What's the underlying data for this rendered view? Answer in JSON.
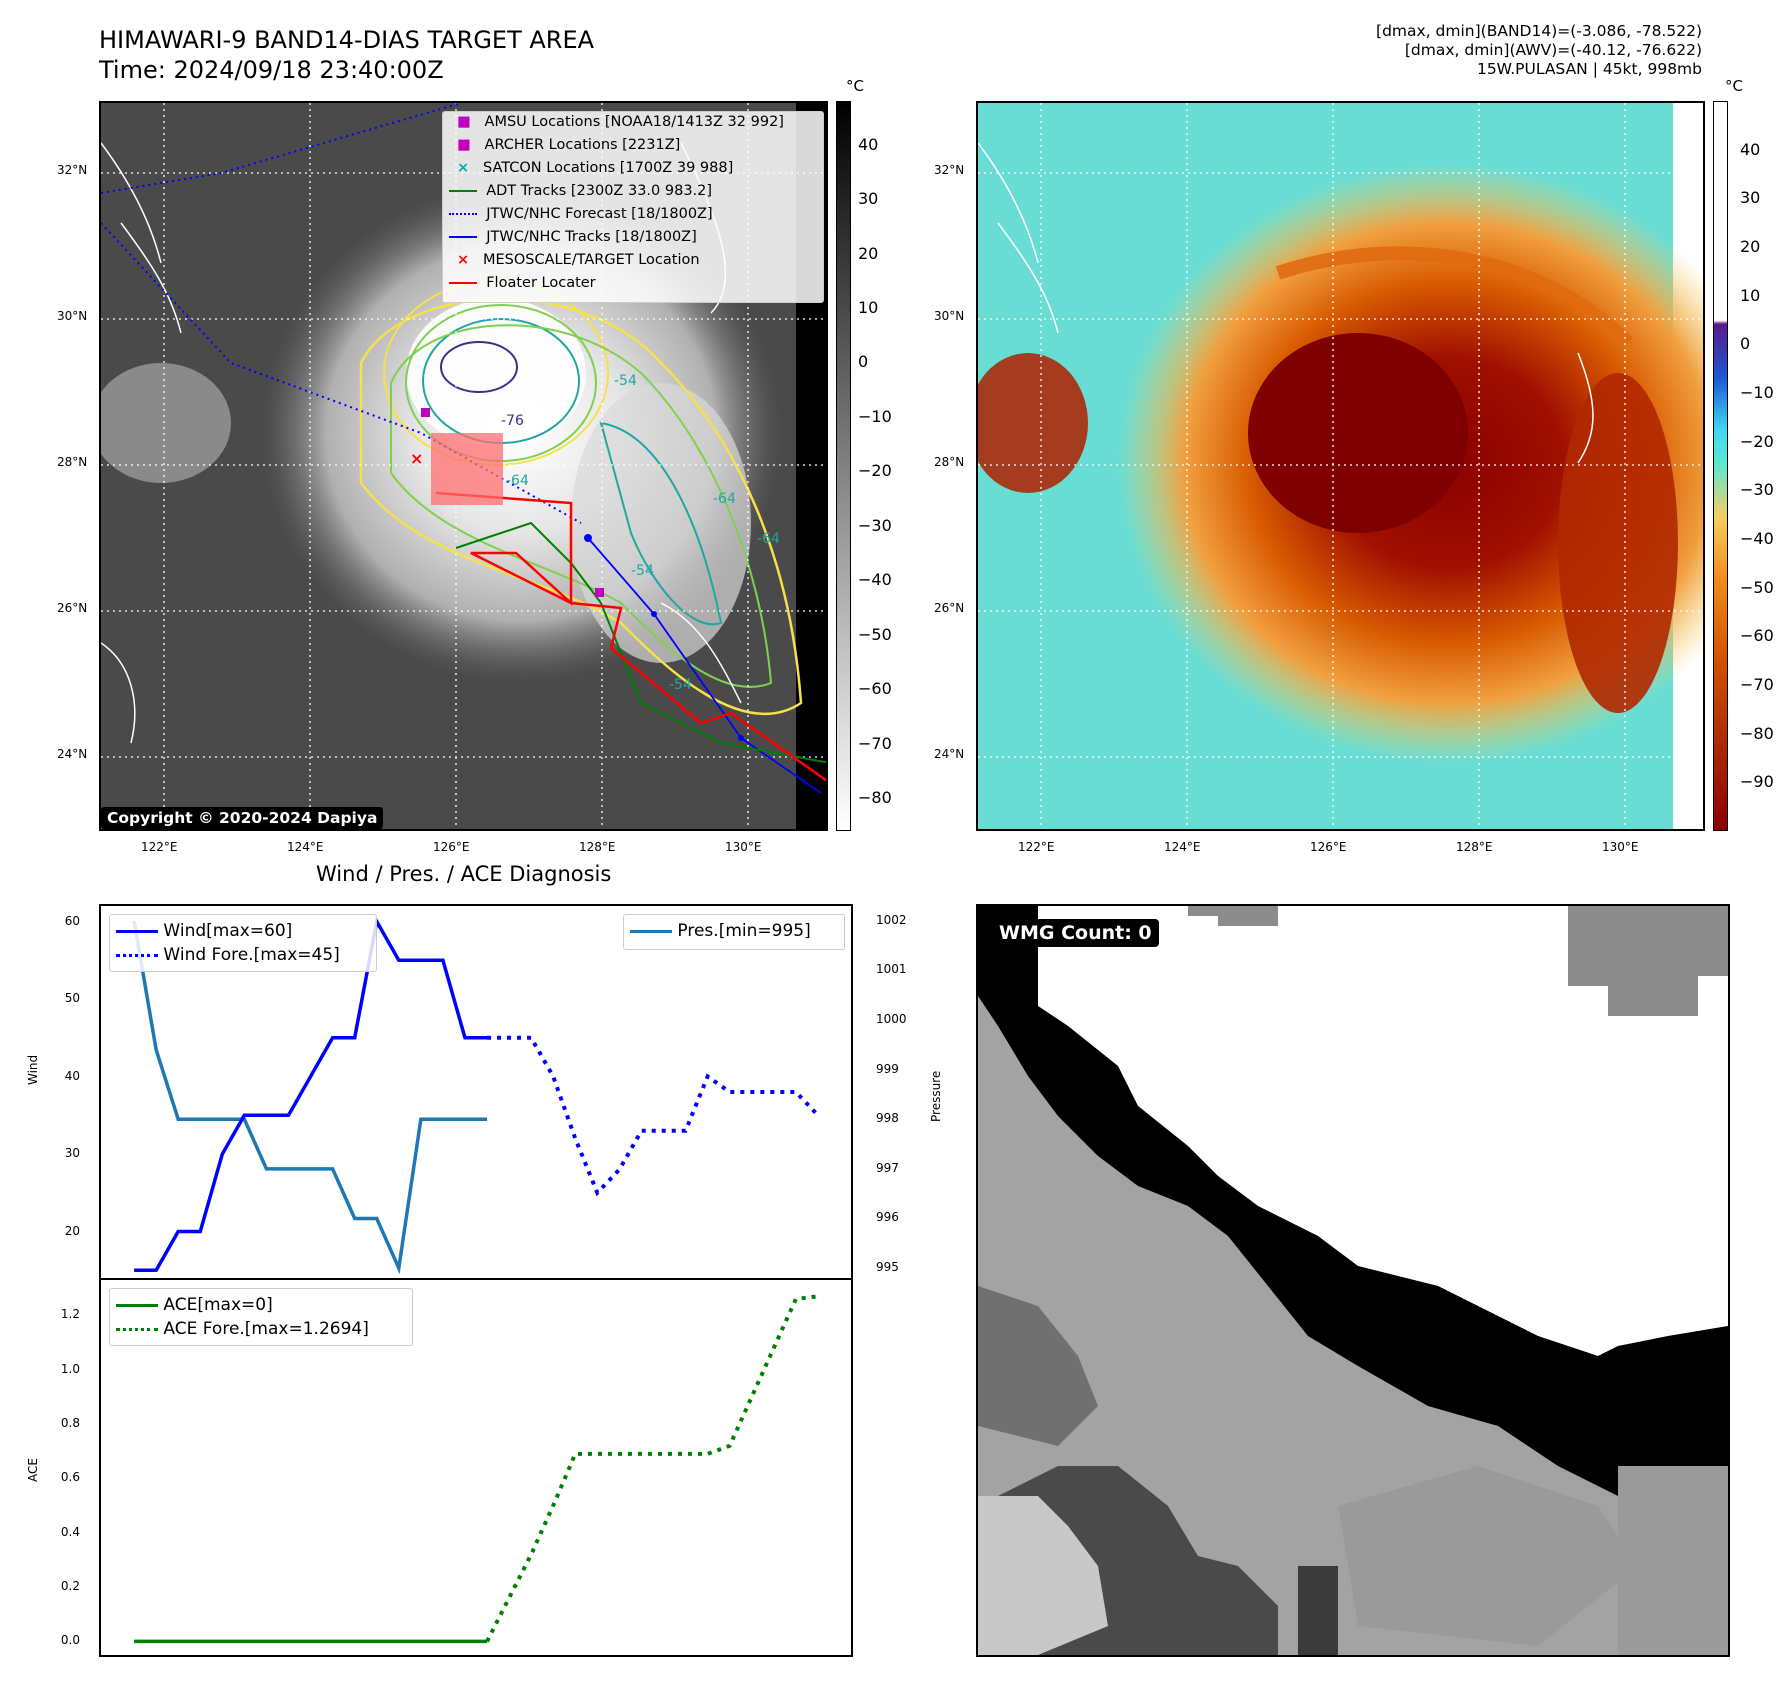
{
  "header": {
    "title": "HIMAWARI-9 BAND14-DIAS TARGET AREA",
    "time": "Time: 2024/09/18 23:40:00Z",
    "info_line1": "[dmax, dmin](BAND14)=(-3.086, -78.522)",
    "info_line2": "[dmax, dmin](AWV)=(-40.12, -76.622)",
    "info_line3": "15W.PULASAN | 45kt, 998mb"
  },
  "maps": {
    "lat_labels": [
      "32°N",
      "30°N",
      "28°N",
      "26°N",
      "24°N"
    ],
    "lon_labels": [
      "122°E",
      "124°E",
      "126°E",
      "128°E",
      "130°E"
    ],
    "colorbar_unit": "°C",
    "ir_colorbar_ticks": [
      "40",
      "30",
      "20",
      "10",
      "0",
      "−10",
      "−20",
      "−30",
      "−40",
      "−50",
      "−60",
      "−70",
      "−80"
    ],
    "color_colorbar_ticks": [
      "40",
      "30",
      "20",
      "10",
      "0",
      "−10",
      "−20",
      "−30",
      "−40",
      "−50",
      "−60",
      "−70",
      "−80",
      "−90"
    ],
    "contour_labels": [
      "-76",
      "-64",
      "-54",
      "-54",
      "-64",
      "-64",
      "-54"
    ],
    "copyright": "Copyright © 2020-2024 Dapiya",
    "legend": [
      {
        "label": "AMSU Locations [NOAA18/1413Z 32 992]",
        "marker": "square",
        "color": "#c000c0"
      },
      {
        "label": "ARCHER Locations [2231Z]",
        "marker": "square",
        "color": "#c000c0"
      },
      {
        "label": "SATCON Locations [1700Z 39 988]",
        "marker": "x",
        "color": "#00b0b0"
      },
      {
        "label": "ADT Tracks [2300Z 33.0 983.2]",
        "marker": "line",
        "color": "#008000"
      },
      {
        "label": "JTWC/NHC Forecast [18/1800Z]",
        "marker": "dotted",
        "color": "#0000ff"
      },
      {
        "label": "JTWC/NHC Tracks [18/1800Z]",
        "marker": "line-dot",
        "color": "#0000ff"
      },
      {
        "label": "MESOSCALE/TARGET Location",
        "marker": "x",
        "color": "#ff0000"
      },
      {
        "label": "Floater Locater",
        "marker": "line",
        "color": "#ff0000"
      }
    ]
  },
  "diagnosis": {
    "title": "Wind / Pres. / ACE Diagnosis",
    "wind_ylabel": "Wind",
    "pres_ylabel": "Pressure",
    "ace_ylabel": "ACE",
    "legend_wind": "Wind[max=60]",
    "legend_wind_fore": "Wind Fore.[max=45]",
    "legend_pres": "Pres.[min=995]",
    "legend_ace": "ACE[max=0]",
    "legend_ace_fore": "ACE Fore.[max=1.2694]"
  },
  "wmg": {
    "badge": "WMG Count: 0"
  },
  "chart_data": [
    {
      "type": "line",
      "name": "wind",
      "x": [
        0,
        1,
        2,
        3,
        4,
        5,
        6,
        7,
        8,
        9,
        10,
        11,
        12,
        13,
        14,
        15,
        16
      ],
      "series": [
        {
          "name": "Wind[max=60]",
          "values": [
            15,
            15,
            20,
            20,
            30,
            35,
            35,
            35,
            40,
            45,
            45,
            60,
            55,
            55,
            55,
            45,
            45
          ],
          "color": "#0000ff",
          "style": "solid"
        }
      ],
      "forecast_x": [
        16,
        17,
        18,
        19,
        20,
        21,
        22,
        23,
        24,
        25,
        26,
        27,
        28,
        29,
        30,
        31
      ],
      "forecast_values": [
        45,
        45,
        45,
        40,
        32,
        25,
        28,
        33,
        33,
        33,
        40,
        38,
        38,
        38,
        38,
        35
      ],
      "forecast_name": "Wind Fore.[max=45]",
      "ylim": [
        14,
        62
      ],
      "yticks": [
        20,
        30,
        40,
        50,
        60
      ],
      "xlim": [
        -1.5,
        32.5
      ]
    },
    {
      "type": "line",
      "name": "pressure",
      "x": [
        0,
        1,
        2,
        3,
        4,
        5,
        6,
        7,
        8,
        9,
        10,
        11,
        12,
        13,
        14,
        15,
        16
      ],
      "series": [
        {
          "name": "Pres.[min=995]",
          "values": [
            1002,
            999.4,
            998,
            998,
            998,
            998,
            997,
            997,
            997,
            997,
            996,
            996,
            995,
            998,
            998,
            998,
            998
          ],
          "color": "#1f77b4",
          "style": "solid"
        }
      ],
      "ylim": [
        994.8,
        1002.3
      ],
      "yticks": [
        995,
        996,
        997,
        998,
        999,
        1000,
        1001,
        1002
      ]
    },
    {
      "type": "line",
      "name": "ace",
      "x": [
        0,
        1,
        2,
        3,
        4,
        5,
        6,
        7,
        8,
        9,
        10,
        11,
        12,
        13,
        14,
        15,
        16
      ],
      "series": [
        {
          "name": "ACE[max=0]",
          "values": [
            0,
            0,
            0,
            0,
            0,
            0,
            0,
            0,
            0,
            0,
            0,
            0,
            0,
            0,
            0,
            0,
            0
          ],
          "color": "#008000",
          "style": "solid"
        }
      ],
      "forecast_x": [
        16,
        17,
        18,
        19,
        20,
        21,
        22,
        23,
        24,
        25,
        26,
        27,
        28,
        29,
        30,
        31
      ],
      "forecast_values": [
        0,
        0.16,
        0.32,
        0.5,
        0.69,
        0.69,
        0.69,
        0.69,
        0.69,
        0.69,
        0.69,
        0.72,
        0.9,
        1.08,
        1.26,
        1.27
      ],
      "forecast_name": "ACE Fore.[max=1.2694]",
      "ylim": [
        -0.05,
        1.33
      ],
      "yticks": [
        0.0,
        0.2,
        0.4,
        0.6,
        0.8,
        1.0,
        1.2
      ],
      "ytick_labels": [
        "0.0",
        "0.2",
        "0.4",
        "0.6",
        "0.8",
        "1.0",
        "1.2"
      ]
    }
  ]
}
